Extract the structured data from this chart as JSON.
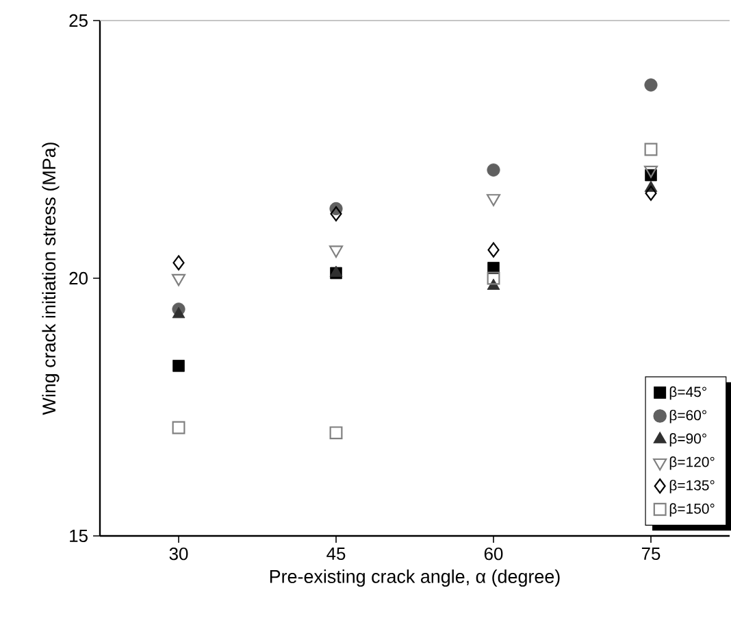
{
  "chart_data": {
    "type": "scatter",
    "xlabel": "Pre-existing crack angle, α (degree)",
    "ylabel": "Wing crack initiation stress (MPa)",
    "x": [
      30,
      45,
      60,
      75
    ],
    "xlim": [
      22.5,
      82.5
    ],
    "xticks": [
      30,
      45,
      60,
      75
    ],
    "ylim": [
      15,
      25
    ],
    "yticks": [
      15,
      20,
      25
    ],
    "legend": "bottom right",
    "grid": false,
    "series": [
      {
        "name": "β=45°",
        "color": "#000000",
        "marker": "square",
        "values": [
          18.3,
          20.1,
          20.2,
          22.0
        ]
      },
      {
        "name": "β=60°",
        "color": "#606060",
        "marker": "circle",
        "values": [
          19.4,
          21.35,
          22.1,
          23.75
        ]
      },
      {
        "name": "β=90°",
        "color": "#303030",
        "marker": "triangle",
        "values": [
          19.3,
          20.1,
          19.85,
          21.75
        ]
      },
      {
        "name": "β=120°",
        "color": "#808080",
        "marker": "triangle-down-open",
        "values": [
          20.0,
          20.55,
          21.55,
          22.1
        ]
      },
      {
        "name": "β=135°",
        "color": "#000000",
        "marker": "diamond-open",
        "values": [
          20.3,
          21.25,
          20.55,
          21.65
        ]
      },
      {
        "name": "β=150°",
        "color": "#808080",
        "marker": "square-open",
        "values": [
          17.1,
          17.0,
          20.0,
          22.5
        ]
      }
    ]
  }
}
